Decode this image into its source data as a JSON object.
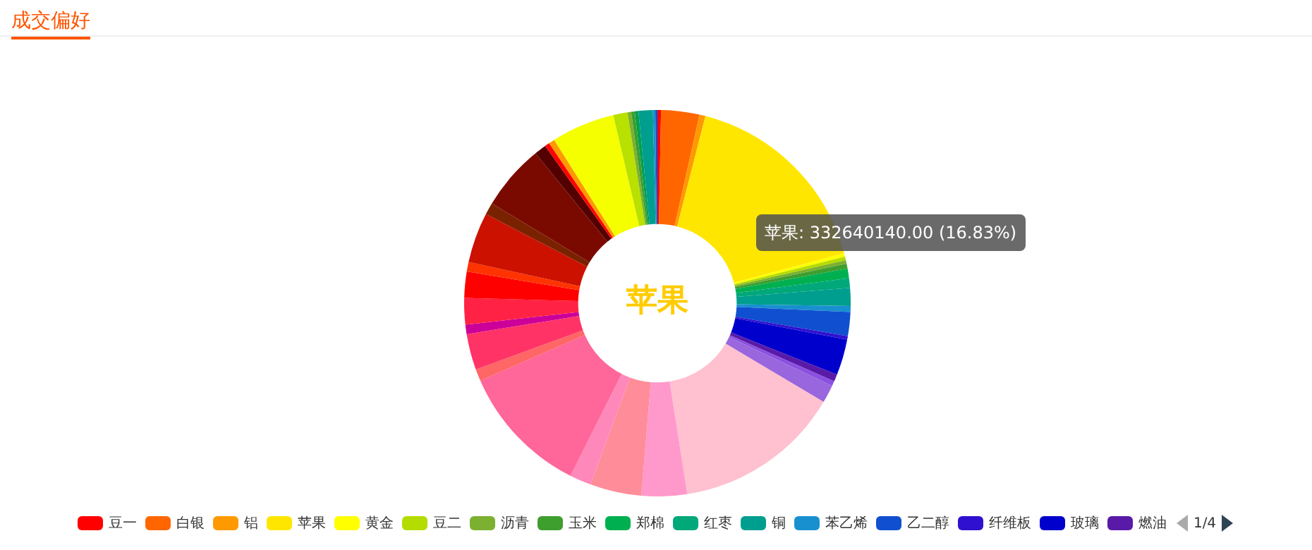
{
  "chart_data": {
    "type": "donut",
    "title": "成交偏好",
    "categories": [
      "豆一",
      "白银",
      "铝",
      "苹果",
      "黄金",
      "豆二",
      "沥青",
      "玉米",
      "郑棉",
      "红枣",
      "铜",
      "苯乙烯",
      "乙二醇",
      "纤维板",
      "玻璃",
      "燃油",
      null,
      null,
      null,
      null,
      null,
      null,
      null,
      null,
      null,
      null,
      null,
      null,
      null,
      null,
      null,
      null,
      null,
      null,
      null,
      null,
      null,
      null,
      null,
      null,
      null,
      null,
      null
    ],
    "values": [
      0.3,
      3.2,
      0.5,
      16.83,
      0.3,
      0.3,
      0.3,
      0.4,
      0.8,
      0.8,
      1.5,
      0.5,
      2.0,
      0.3,
      3.0,
      0.6,
      0.4,
      1.5,
      14,
      3.8,
      4.3,
      1.8,
      11,
      1.0,
      3.0,
      0.8,
      2.2,
      2.2,
      0.8,
      4.2,
      1.0,
      5.5,
      1.0,
      0.4,
      0.5,
      5.3,
      1.2,
      0.3,
      0.3,
      0.3,
      1.2,
      0.2,
      0.17
    ],
    "colors": [
      "#ff0000",
      "#ff6600",
      "#ff9900",
      "#ffe600",
      "#ffff00",
      "#b5dc00",
      "#7cb030",
      "#3e9e2e",
      "#00b050",
      "#00a87a",
      "#009e8e",
      "#1890d0",
      "#1050d0",
      "#3010d0",
      "#0000cc",
      "#5a1aa8",
      "#8a50e0",
      "#9966dd",
      "#ffc0d0",
      "#ff99cc",
      "#ff8c99",
      "#ff88bb",
      "#ff6699",
      "#ff6666",
      "#ff3366",
      "#cc0099",
      "#ff2244",
      "#ff0000",
      "#ff3300",
      "#cc1100",
      "#7a2200",
      "#7a0a00",
      "#550000",
      "#ff0000",
      "#ff9900",
      "#f5ff00",
      "#b8e000",
      "#7cb030",
      "#3e9e2e",
      "#00a050",
      "#009e8e",
      "#1890d0",
      "#1050d0"
    ],
    "legend": "bottom",
    "annotations": [
      "苹果",
      "苹果: 332640140.00 (16.83%)",
      "1/4"
    ]
  }
}
